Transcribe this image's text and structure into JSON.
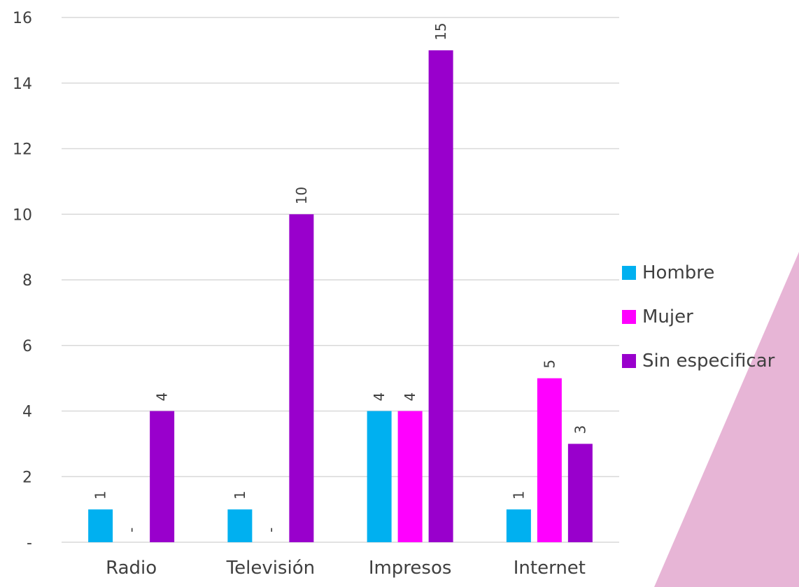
{
  "chart_data": {
    "type": "bar",
    "categories": [
      "Radio",
      "Televisión",
      "Impresos",
      "Internet"
    ],
    "series": [
      {
        "name": "Hombre",
        "color": "#00B0F0",
        "values": [
          1,
          1,
          4,
          1
        ],
        "labels": [
          "1",
          "1",
          "4",
          "1"
        ]
      },
      {
        "name": "Mujer",
        "color": "#FF00FF",
        "values": [
          0,
          0,
          4,
          5
        ],
        "labels": [
          "-",
          "-",
          "4",
          "5"
        ]
      },
      {
        "name": "Sin especificar",
        "color": "#9900CC",
        "values": [
          4,
          10,
          15,
          3
        ],
        "labels": [
          "4",
          "10",
          "15",
          "3"
        ]
      }
    ],
    "yticks": [
      "-",
      "2",
      "4",
      "6",
      "8",
      "10",
      "12",
      "14",
      "16"
    ],
    "ylim": [
      0,
      16
    ],
    "grid": true,
    "legend_position": "right"
  },
  "decoration": {
    "accent_color": "#E3A8CF"
  }
}
